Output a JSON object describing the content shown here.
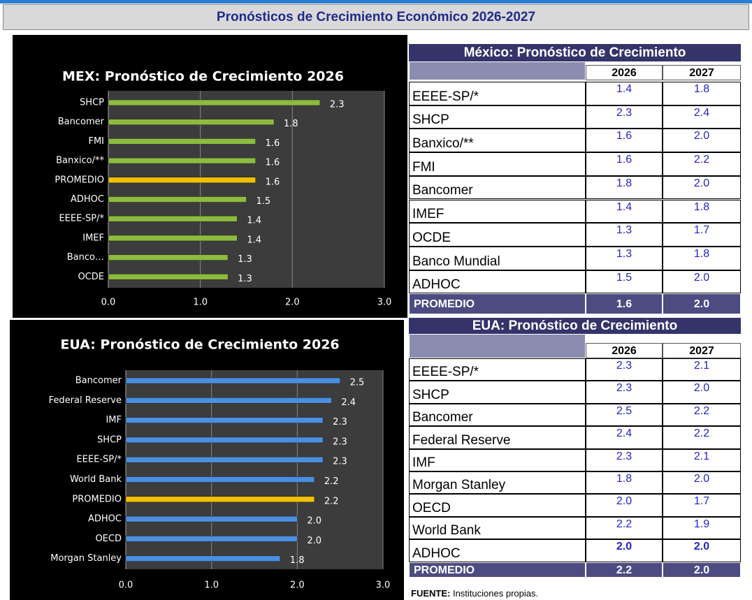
{
  "header_title": "Pronósticos de Crecimiento Económico 2026-2027",
  "chart_data": [
    {
      "type": "bar",
      "orientation": "horizontal",
      "title": "MEX: Pronóstico de Crecimiento 2026",
      "categories": [
        "SHCP",
        "Bancomer",
        "FMI",
        "Banxico/**",
        "PROMEDIO",
        "ADHOC",
        "EEEE-SP/*",
        "IMEF",
        "Banco…",
        "OCDE"
      ],
      "values": [
        2.3,
        1.8,
        1.6,
        1.6,
        1.6,
        1.5,
        1.4,
        1.4,
        1.3,
        1.3
      ],
      "colors": [
        "#8dbb3e",
        "#8dbb3e",
        "#8dbb3e",
        "#8dbb3e",
        "#f2c200",
        "#8dbb3e",
        "#8dbb3e",
        "#8dbb3e",
        "#8dbb3e",
        "#8dbb3e"
      ],
      "xlim": [
        0,
        3
      ],
      "xticks": [
        {
          "value": 0,
          "label": "0.0"
        },
        {
          "value": 1,
          "label": "1.0"
        },
        {
          "value": 2,
          "label": "2.0"
        },
        {
          "value": 3,
          "label": "3.0"
        }
      ],
      "grid": true
    },
    {
      "type": "bar",
      "orientation": "horizontal",
      "title": "EUA: Pronóstico de Crecimiento 2026",
      "categories": [
        "Bancomer",
        "Federal Reserve",
        "IMF",
        "SHCP",
        "EEEE-SP/*",
        "World Bank",
        "PROMEDIO",
        "ADHOC",
        "OECD",
        "Morgan Stanley"
      ],
      "values": [
        2.5,
        2.4,
        2.3,
        2.3,
        2.3,
        2.2,
        2.2,
        2.0,
        2.0,
        1.8
      ],
      "value_labels": [
        "2.5",
        "2.4",
        "2.3",
        "2.3",
        "2.3",
        "2.2",
        "2.2",
        "2.0",
        "2.0",
        "1.8"
      ],
      "colors": [
        "#4a8fe0",
        "#4a8fe0",
        "#4a8fe0",
        "#4a8fe0",
        "#4a8fe0",
        "#4a8fe0",
        "#f2c200",
        "#4a8fe0",
        "#4a8fe0",
        "#4a8fe0"
      ],
      "xlim": [
        0,
        3
      ],
      "xticks": [
        {
          "value": 0,
          "label": "0.0"
        },
        {
          "value": 1,
          "label": "1.0"
        },
        {
          "value": 2,
          "label": "2.0"
        },
        {
          "value": 3,
          "label": "3.0"
        }
      ],
      "grid": true
    }
  ],
  "tables": [
    {
      "title": "México: Pronóstico de Crecimiento",
      "columns": [
        "2026",
        "2027"
      ],
      "rows": [
        [
          "EEEE-SP/*",
          "1.4",
          "1.8"
        ],
        [
          "SHCP",
          "2.3",
          "2.4"
        ],
        [
          "Banxico/**",
          "1.6",
          "2.0"
        ],
        [
          "FMI",
          "1.6",
          "2.2"
        ],
        [
          "Bancomer",
          "1.8",
          "2.0"
        ],
        [
          "IMEF",
          "1.4",
          "1.8"
        ],
        [
          "OCDE",
          "1.3",
          "1.7"
        ],
        [
          "Banco Mundial",
          "1.3",
          "1.8"
        ],
        [
          "ADHOC",
          "1.5",
          "2.0"
        ]
      ],
      "total": [
        "PROMEDIO",
        "1.6",
        "2.0"
      ]
    },
    {
      "title": "EUA: Pronóstico de Crecimiento",
      "columns": [
        "2026",
        "2027"
      ],
      "rows": [
        [
          "EEEE-SP/*",
          "2.3",
          "2.1"
        ],
        [
          "SHCP",
          "2.3",
          "2.0"
        ],
        [
          "Bancomer",
          "2.5",
          "2.2"
        ],
        [
          "Federal Reserve",
          "2.4",
          "2.2"
        ],
        [
          "IMF",
          "2.3",
          "2.1"
        ],
        [
          "Morgan Stanley",
          "1.8",
          "2.0"
        ],
        [
          "OECD",
          "2.0",
          "1.7"
        ],
        [
          "World Bank",
          "2.2",
          "1.9"
        ],
        [
          "ADHOC",
          "2.0",
          "2.0"
        ]
      ],
      "total": [
        "PROMEDIO",
        "2.2",
        "2.0"
      ]
    }
  ],
  "source_label": "FUENTE:",
  "source": "Instituciones propias."
}
